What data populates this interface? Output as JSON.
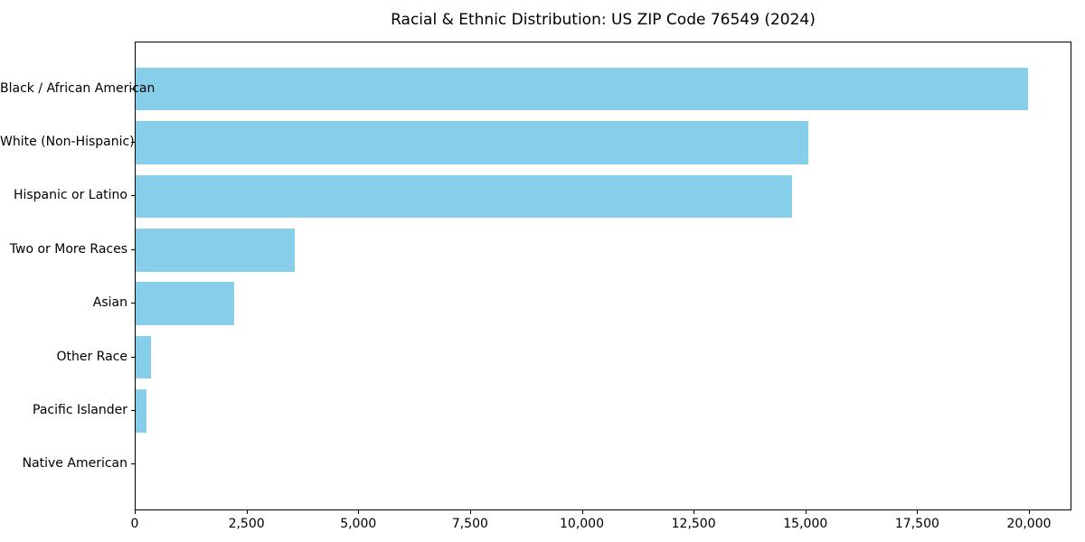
{
  "chart_data": {
    "type": "bar",
    "orientation": "horizontal",
    "title": "Racial & Ethnic Distribution: US ZIP Code 76549 (2024)",
    "categories": [
      "Black / African American",
      "White (Non-Hispanic)",
      "Hispanic or Latino",
      "Two or More Races",
      "Asian",
      "Other Race",
      "Pacific Islander",
      "Native American"
    ],
    "values": [
      19950,
      15040,
      14690,
      3560,
      2210,
      340,
      250,
      0
    ],
    "bar_color": "#87CEEB",
    "frame_color": "#000000",
    "text_color": "#000000",
    "xlabel": "",
    "ylabel": "",
    "xlim": [
      0,
      20950
    ],
    "x_ticks": [
      0,
      2500,
      5000,
      7500,
      10000,
      12500,
      15000,
      17500,
      20000
    ],
    "x_tick_labels": [
      "0",
      "2,500",
      "5,000",
      "7,500",
      "10,000",
      "12,500",
      "15,000",
      "17,500",
      "20,000"
    ],
    "grid": false,
    "legend": "none"
  }
}
